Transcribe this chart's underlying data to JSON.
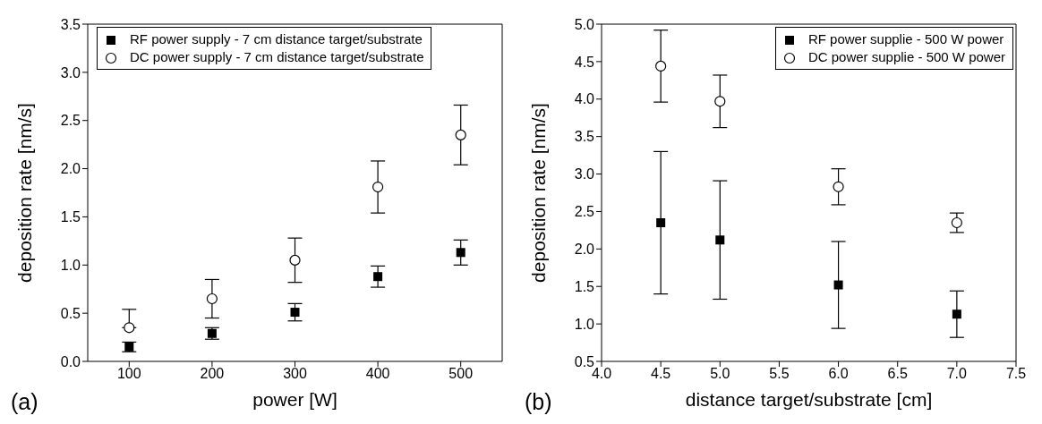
{
  "chart_data": [
    {
      "type": "scatter",
      "xlabel": "power [W]",
      "ylabel": "deposition rate [nm/s]",
      "annotations": [
        "(a)"
      ],
      "x": [
        100,
        200,
        300,
        400,
        500
      ],
      "xlim": [
        50,
        550
      ],
      "xticks": [
        100,
        200,
        300,
        400,
        500
      ],
      "ylim": [
        0,
        3.5
      ],
      "yticks": [
        {
          "value": 0,
          "label": "0.0"
        },
        0.5,
        {
          "value": 1,
          "label": "1.0"
        },
        1.5,
        {
          "value": 2,
          "label": "2.0"
        },
        2.5,
        {
          "value": 3,
          "label": "3.0"
        },
        3.5
      ],
      "legend": "top left",
      "grid": false,
      "series": [
        {
          "name": "RF power supply - 7 cm distance target/substrate",
          "color": "#000000",
          "marker": "square",
          "values": [
            0.15,
            0.29,
            0.51,
            0.88,
            1.13
          ],
          "errors": [
            [
              0.1,
              0.2
            ],
            [
              0.23,
              0.35
            ],
            [
              0.42,
              0.6
            ],
            [
              0.77,
              0.99
            ],
            [
              1.0,
              1.26
            ]
          ]
        },
        {
          "name": "DC power supply - 7 cm distance target/substrate",
          "color": "#000000",
          "marker": "circle",
          "values": [
            0.35,
            0.65,
            1.05,
            1.81,
            2.35
          ],
          "errors": [
            [
              0.35,
              0.54
            ],
            [
              0.45,
              0.85
            ],
            [
              0.82,
              1.28
            ],
            [
              1.54,
              2.08
            ],
            [
              2.04,
              2.66
            ]
          ]
        }
      ]
    },
    {
      "type": "scatter",
      "xlabel": "distance target/substrate [cm]",
      "ylabel": "deposition rate [nm/s]",
      "annotations": [
        "(b)"
      ],
      "x": [
        4.5,
        5.0,
        6.0,
        7.0
      ],
      "xlim": [
        4.0,
        7.5
      ],
      "xticks": [
        {
          "value": 4,
          "label": "4.0"
        },
        4.5,
        {
          "value": 5,
          "label": "5.0"
        },
        5.5,
        {
          "value": 6,
          "label": "6.0"
        },
        6.5,
        {
          "value": 7,
          "label": "7.0"
        },
        7.5
      ],
      "ylim": [
        0.5,
        5.0
      ],
      "yticks": [
        0.5,
        {
          "value": 1,
          "label": "1.0"
        },
        1.5,
        {
          "value": 2,
          "label": "2.0"
        },
        2.5,
        {
          "value": 3,
          "label": "3.0"
        },
        3.5,
        {
          "value": 4,
          "label": "4.0"
        },
        4.5,
        {
          "value": 5,
          "label": "5.0"
        }
      ],
      "legend": "top right",
      "grid": false,
      "series": [
        {
          "name": "RF power supplie - 500 W power",
          "color": "#000000",
          "marker": "square",
          "values": [
            2.35,
            2.12,
            1.52,
            1.13
          ],
          "errors": [
            [
              1.4,
              3.3
            ],
            [
              1.33,
              2.91
            ],
            [
              0.94,
              2.1
            ],
            [
              0.82,
              1.44
            ]
          ]
        },
        {
          "name": "DC power supplie - 500 W power",
          "color": "#000000",
          "marker": "circle",
          "values": [
            4.44,
            3.97,
            2.83,
            2.35
          ],
          "errors": [
            [
              3.96,
              4.92
            ],
            [
              3.62,
              4.32
            ],
            [
              2.59,
              3.07
            ],
            [
              2.22,
              2.48
            ]
          ]
        }
      ]
    }
  ]
}
